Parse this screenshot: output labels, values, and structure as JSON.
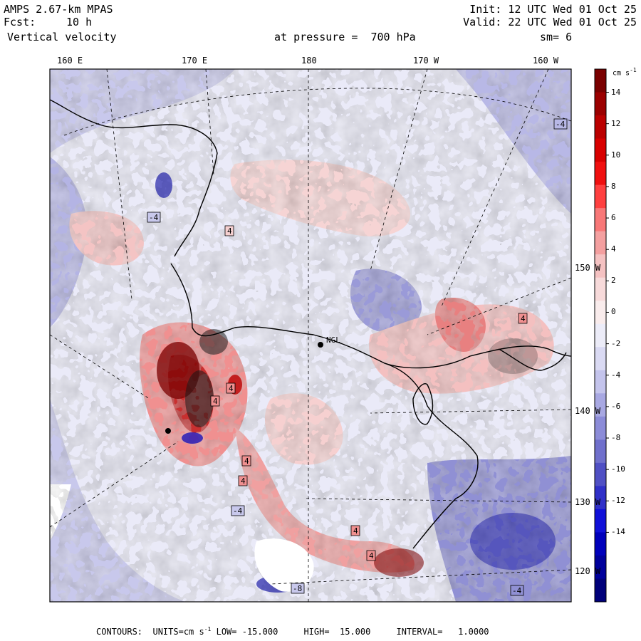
{
  "header": {
    "model": "AMPS 2.67-km MPAS",
    "init": "Init: 12 UTC Wed 01 Oct 25",
    "fcst_label": "Fcst:",
    "fcst_value": "10 h",
    "valid": "Valid: 22 UTC Wed 01 Oct 25",
    "field": "Vertical velocity",
    "level": "at pressure =  700 hPa",
    "smooth": "sm= 6"
  },
  "lon_labels": [
    "160 E",
    "170 E",
    "180",
    "170 W",
    "160 W"
  ],
  "lat_labels": [
    "150 W",
    "140 W",
    "130 W",
    "120 W"
  ],
  "station_label": "NGL",
  "contour_labels": [
    "4",
    "4",
    "4",
    "4",
    "4",
    "4",
    "4",
    "4",
    "-4",
    "-4",
    "-4",
    "-4",
    "-8"
  ],
  "colorbar": {
    "units": "cm s",
    "units_exp": "-1",
    "ticks": [
      "14",
      "12",
      "10",
      "8",
      "6",
      "4",
      "2",
      "0",
      "-2",
      "-4",
      "-6",
      "-8",
      "-10",
      "-12",
      "-14"
    ],
    "colors_positive": [
      "#7a0000",
      "#9b0000",
      "#bb0000",
      "#d80000",
      "#f01010",
      "#ff4040",
      "#f87878",
      "#f4a0a0",
      "#f5c2c2",
      "#f7dada",
      "#f9ecec"
    ],
    "colors_negative": [
      "#ececf8",
      "#dadaf3",
      "#c4c4ec",
      "#a8a8e2",
      "#8c8cd8",
      "#7070cc",
      "#5050c4",
      "#3030c8",
      "#1010d8",
      "#0000bb",
      "#00009b",
      "#00007a"
    ]
  },
  "footer": {
    "contours": "CONTOURS:",
    "units": "UNITS=cm s",
    "units_exp": "-1",
    "low": "LOW= -15.000",
    "high": "HIGH=  15.000",
    "interval": "INTERVAL=   1.0000"
  }
}
